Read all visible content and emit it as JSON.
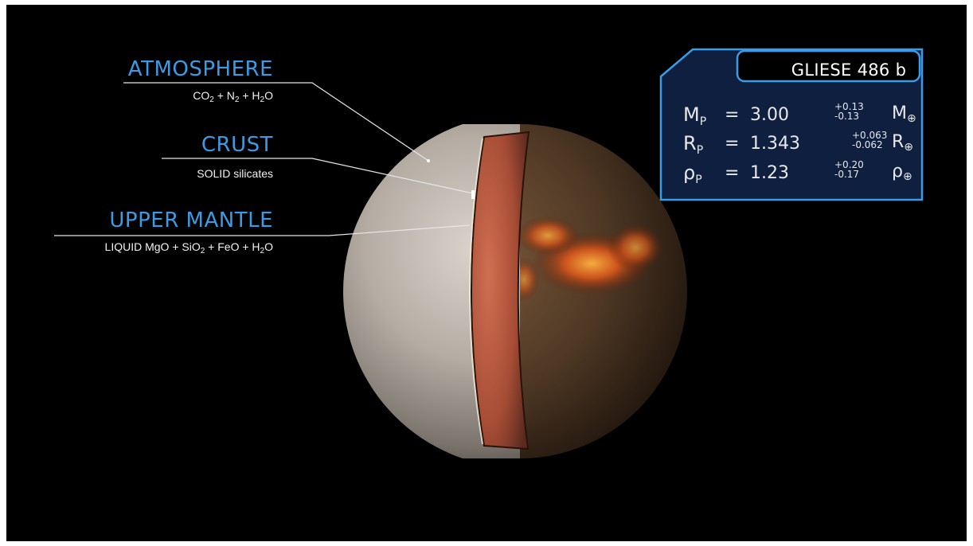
{
  "planet": {
    "name": "GLIESE 486 b"
  },
  "parameters": [
    {
      "symbol": "M",
      "subscript": "P",
      "equals": "=",
      "value": "3.00",
      "err_plus": "+0.13",
      "err_minus": "-0.13",
      "unit": "M",
      "unit_sub": "⊕"
    },
    {
      "symbol": "R",
      "subscript": "P",
      "equals": "=",
      "value": "1.343",
      "err_plus": "+0.063",
      "err_minus": "-0.062",
      "unit": "R",
      "unit_sub": "⊕"
    },
    {
      "symbol": "ρ",
      "subscript": "P",
      "equals": "=",
      "value": "1.23",
      "err_plus": "+0.20",
      "err_minus": "-0.17",
      "unit": "ρ",
      "unit_sub": "⊕"
    }
  ],
  "layers": [
    {
      "title": "ATMOSPHERE",
      "composition": [
        [
          "CO",
          "2"
        ],
        [
          " + N",
          "2"
        ],
        [
          " + H",
          "2"
        ],
        [
          "O",
          ""
        ]
      ]
    },
    {
      "title": "CRUST",
      "composition": [
        [
          "SOLID silicates",
          ""
        ]
      ]
    },
    {
      "title": "UPPER MANTLE",
      "composition": [
        [
          "LIQUID MgO + SiO",
          "2"
        ],
        [
          " + FeO + H",
          "2"
        ],
        [
          "O",
          ""
        ]
      ]
    }
  ],
  "colors": {
    "background": "#000000",
    "accent": "#3a9be6",
    "panel": "#0f1f3f"
  }
}
